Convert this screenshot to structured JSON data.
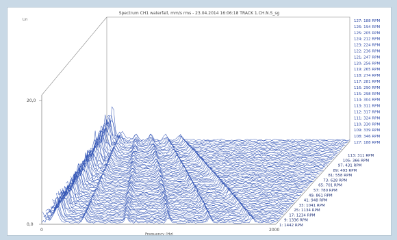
{
  "chart_data": {
    "type": "waterfall",
    "title": "Spectrum CH1 waterfall, mm/s rms - 23.04.2014 16:06:18  TRACK 1.CH.N.S_sg",
    "ylabel": "Lin",
    "xlabel": "Frequency (Hz)",
    "xlim": [
      0,
      2000
    ],
    "ylim": [
      0,
      20
    ],
    "y_ticks": [
      "0,0",
      "20,0"
    ],
    "x_ticks": [
      "0",
      "2000"
    ],
    "series_color": "#2b4fb3",
    "back_rpm_labels": [
      "127: 188 RPM",
      "126: 194 RPM",
      "125: 205 RPM",
      "124: 212 RPM",
      "123: 224 RPM",
      "122: 236 RPM",
      "121: 247 RPM",
      "120: 256 RPM",
      "119: 265 RPM",
      "118: 274 RPM",
      "117: 281 RPM",
      "116: 290 RPM",
      "115: 298 RPM",
      "114: 304 RPM",
      "113: 311 RPM",
      "112: 317 RPM",
      "111: 324 RPM",
      "110: 330 RPM",
      "109: 339 RPM",
      "108: 346 RPM",
      "127: 188 RPM"
    ],
    "front_rpm_labels": [
      "113: 311 RPM",
      "105: 366 RPM",
      "97: 431 RPM",
      "89: 493 RPM",
      "81: 558 RPM",
      "73: 628 RPM",
      "65: 701 RPM",
      "57: 780 RPM",
      "49: 861 RPM",
      "41: 948 RPM",
      "33: 1041 RPM",
      "25: 1134 RPM",
      "17: 1234 RPM",
      "9: 1336 RPM",
      "1: 1442 RPM"
    ]
  }
}
